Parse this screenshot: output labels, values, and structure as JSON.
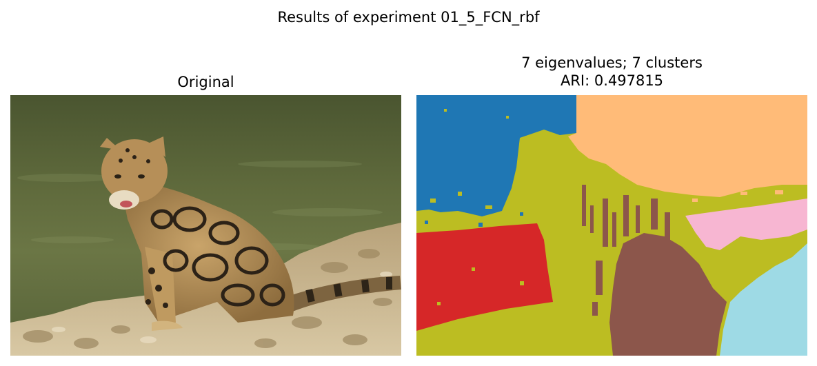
{
  "figure": {
    "suptitle": "Results of experiment 01_5_FCN_rbf"
  },
  "panels": {
    "original": {
      "title": "Original"
    },
    "segmentation": {
      "title_line1": "7 eigenvalues; 7 clusters",
      "title_line2": "ARI: 0.497815"
    }
  },
  "colors": {
    "cluster_blue": "#1f77b4",
    "cluster_peach": "#ffbb78",
    "cluster_olive": "#bcbd22",
    "cluster_red": "#d62728",
    "cluster_brown": "#8c564b",
    "cluster_pink": "#f7b6d2",
    "cluster_cyan": "#9edae5"
  }
}
